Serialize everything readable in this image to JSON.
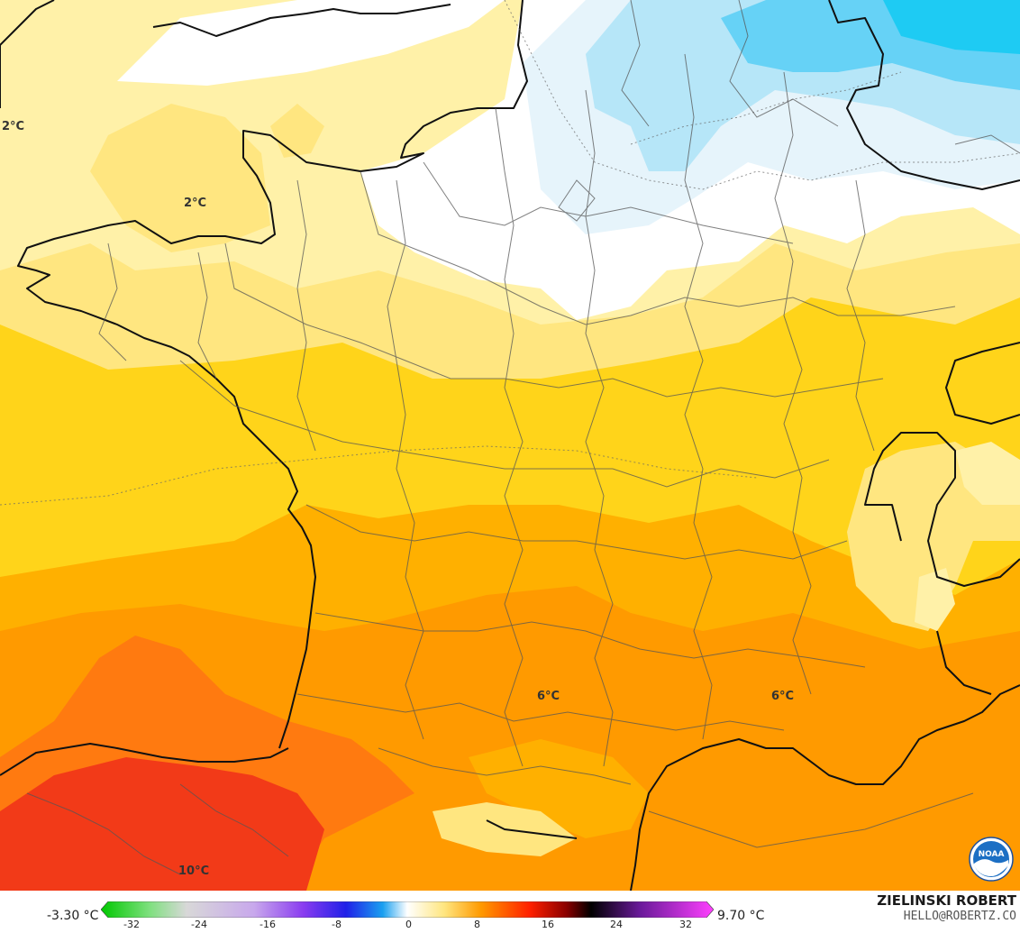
{
  "map": {
    "contour_labels": [
      {
        "text": "2°C"
      },
      {
        "text": "2°C"
      },
      {
        "text": "6°C"
      },
      {
        "text": "6°C"
      },
      {
        "text": "10°C"
      }
    ],
    "colors": {
      "sea_warm": "#ffd400",
      "land_white": "#ffffff",
      "pale_yellow": "#fff1a8",
      "light_yellow": "#ffe680",
      "yellow": "#ffd41a",
      "orange_light": "#ffb000",
      "orange": "#ff9a00",
      "orange_dark": "#ff7a10",
      "red": "#f23a18",
      "blue_pale": "#e6f4fb",
      "blue_light": "#b6e6f8",
      "blue": "#66d2f6",
      "cyan": "#1ecbf3"
    }
  },
  "legend": {
    "min_value": "-3.30 °C",
    "max_value": "9.70 °C",
    "ticks": [
      "-32",
      "-24",
      "-16",
      "-8",
      "0",
      "8",
      "16",
      "24",
      "32"
    ]
  },
  "credits": {
    "author": "ZIELINSKI ROBERT",
    "contact": "HELLO@ROBERTZ.CO",
    "logo_text": "NOAA"
  }
}
